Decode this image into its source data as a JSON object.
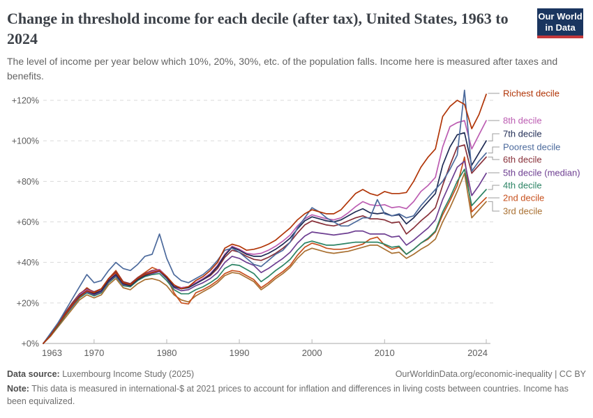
{
  "header": {
    "title": "Change in threshold income for each decile (after tax), United States, 1963 to 2024",
    "subtitle": "The level of income per year below which 10%, 20%, 30%, etc. of the population falls. Income here is measured after taxes and benefits.",
    "logo": {
      "line1": "Our World",
      "line2": "in Data",
      "bg": "#1A355F",
      "accent": "#C4383B"
    }
  },
  "chart_data": {
    "type": "line",
    "title": "Change in threshold income for each decile (after tax), United States, 1963 to 2024",
    "legend_position": "right",
    "grid": "horizontal-dashed",
    "ylim": [
      0,
      130
    ],
    "y_axis": {
      "ticks": [
        0,
        20,
        40,
        60,
        80,
        100,
        120
      ],
      "tick_labels": [
        "+0%",
        "+20%",
        "+40%",
        "+60%",
        "+80%",
        "+100%",
        "+120%"
      ]
    },
    "x_axis": {
      "ticks": [
        1963,
        1970,
        1980,
        1990,
        2000,
        2010,
        2024
      ],
      "tick_labels": [
        "1963",
        "1970",
        "1980",
        "1990",
        "2000",
        "2010",
        "2024"
      ]
    },
    "years": [
      1963,
      1964,
      1965,
      1966,
      1967,
      1968,
      1969,
      1970,
      1971,
      1972,
      1973,
      1974,
      1975,
      1976,
      1977,
      1978,
      1979,
      1980,
      1981,
      1982,
      1983,
      1984,
      1985,
      1986,
      1987,
      1988,
      1989,
      1990,
      1991,
      1992,
      1993,
      1994,
      1995,
      1996,
      1997,
      1998,
      1999,
      2000,
      2001,
      2002,
      2003,
      2004,
      2005,
      2006,
      2007,
      2008,
      2009,
      2010,
      2011,
      2012,
      2013,
      2014,
      2015,
      2016,
      2017,
      2018,
      2019,
      2020,
      2021,
      2022,
      2023,
      2024
    ],
    "draw_order": [
      8,
      7,
      6,
      5,
      4,
      1,
      2,
      3,
      0
    ],
    "series": [
      {
        "name": "Richest decile",
        "color": "#B13507",
        "values": [
          0,
          4,
          9,
          14,
          19,
          23,
          26,
          25,
          27,
          32,
          35,
          30,
          29,
          32,
          34,
          35,
          36,
          33,
          29,
          27,
          28,
          31,
          33,
          36,
          40,
          47,
          49,
          48,
          46,
          46.5,
          47.5,
          49,
          51,
          54,
          57,
          61,
          64,
          66,
          65,
          64,
          64,
          66,
          70,
          74,
          76,
          74,
          73,
          75,
          74,
          74,
          74.5,
          80,
          87,
          92,
          96,
          112,
          117,
          120,
          118,
          106,
          113,
          123
        ]
      },
      {
        "name": "8th decile",
        "color": "#BC5DB2",
        "values": [
          0,
          4.5,
          9,
          14,
          19,
          24,
          26.5,
          25,
          26.5,
          31.5,
          34.5,
          30,
          29,
          32,
          34,
          35.5,
          36.5,
          33,
          28.5,
          27.5,
          28,
          30,
          32,
          34.5,
          38.5,
          44,
          48,
          46.5,
          44.5,
          44,
          44.5,
          46,
          48,
          50.5,
          53.5,
          58,
          61.5,
          63.5,
          62.5,
          61.5,
          61,
          62,
          64.5,
          67.5,
          70,
          68.5,
          68,
          68.5,
          67,
          67.5,
          66.5,
          70,
          75,
          78,
          82,
          97,
          107,
          109,
          110,
          96,
          103,
          110
        ]
      },
      {
        "name": "7th decile",
        "color": "#1F2B54",
        "values": [
          0,
          4.5,
          9,
          14,
          19,
          23.5,
          26,
          24.5,
          26,
          31,
          34,
          29.5,
          28.5,
          31.5,
          33.5,
          35,
          36,
          32.5,
          28,
          27,
          27.5,
          29.5,
          31.5,
          34,
          38,
          43.5,
          47.5,
          46,
          44,
          43,
          43,
          44.5,
          46.5,
          49,
          52,
          56.5,
          60.5,
          62.5,
          61.5,
          60.5,
          60,
          61,
          63,
          65,
          66.5,
          64.5,
          64,
          64.5,
          63,
          63.5,
          59,
          62,
          66,
          70,
          74,
          88,
          97,
          103,
          104,
          88,
          94,
          100
        ]
      },
      {
        "name": "Poorest decile",
        "color": "#4C6A9C",
        "values": [
          0,
          5,
          10,
          16,
          22,
          28,
          34,
          30,
          31,
          36,
          40,
          37,
          36,
          39,
          43,
          44,
          54,
          42,
          34,
          31,
          30,
          32,
          34,
          37,
          41,
          46,
          47,
          45,
          42,
          39,
          38,
          41,
          44,
          46,
          50,
          57,
          62,
          67,
          65,
          62,
          60,
          58,
          58,
          60,
          62,
          62,
          71,
          64,
          63,
          64,
          62,
          63,
          68,
          72,
          76,
          80,
          86,
          93,
          125,
          85,
          90,
          94
        ]
      },
      {
        "name": "6th decile",
        "color": "#883039",
        "values": [
          0,
          4.5,
          9.5,
          15,
          20,
          24.5,
          27,
          25.5,
          27,
          32,
          35.5,
          30.5,
          29.5,
          32.5,
          34.5,
          36,
          36.5,
          33,
          28.5,
          27.5,
          28,
          30,
          31.5,
          33.5,
          37,
          42.5,
          46,
          45,
          43,
          41.5,
          41,
          42.5,
          44.5,
          47,
          50,
          54.5,
          58.5,
          60.5,
          59.5,
          58.5,
          58,
          59,
          60.5,
          62,
          63,
          61.5,
          61.5,
          61,
          59.5,
          60,
          54,
          57,
          60.5,
          63.5,
          67,
          78,
          88,
          97,
          98,
          84,
          88,
          92
        ]
      },
      {
        "name": "5th decile (median)",
        "color": "#6D3E91",
        "values": [
          0,
          4,
          9,
          14,
          18.5,
          23,
          25.5,
          24,
          25.5,
          30.5,
          33.5,
          29,
          28.5,
          31.5,
          33.5,
          34.5,
          35.5,
          32,
          27.5,
          26,
          26.5,
          28.5,
          30,
          32,
          35,
          40,
          43,
          42,
          40,
          38.5,
          35,
          37,
          39.5,
          42,
          45,
          49.5,
          53,
          55,
          54.5,
          54,
          53.5,
          54,
          54.5,
          55.5,
          55.5,
          54,
          54,
          54,
          52.5,
          53,
          48.5,
          51,
          54,
          57,
          61,
          71,
          79,
          87,
          90,
          73,
          78,
          84
        ]
      },
      {
        "name": "4th decile",
        "color": "#2C8465",
        "values": [
          0,
          4,
          8.5,
          13.5,
          18,
          22.5,
          25,
          23.5,
          25,
          30,
          33,
          28.5,
          28,
          31,
          33,
          34,
          34.5,
          31,
          26.5,
          24.5,
          24.5,
          26.5,
          28,
          30,
          32.5,
          37,
          39,
          38.5,
          36.5,
          34.5,
          30.5,
          33,
          36,
          38.5,
          41.5,
          46,
          49.5,
          50.5,
          49.5,
          48.5,
          48.5,
          49,
          49.5,
          50,
          50,
          50,
          50,
          49,
          47.5,
          48,
          44,
          46.5,
          49.5,
          52,
          55.5,
          65,
          72,
          80,
          86,
          68,
          72,
          76
        ]
      },
      {
        "name": "2nd decile",
        "color": "#C7501D",
        "values": [
          0,
          4,
          9,
          14.5,
          19.5,
          24,
          27.5,
          25,
          26.5,
          32,
          36,
          30.5,
          29,
          32.5,
          35,
          37.5,
          36,
          32.5,
          25,
          20,
          19.5,
          25,
          26.5,
          28.5,
          31,
          34.5,
          36,
          35.5,
          33.5,
          31.5,
          27.5,
          30,
          33,
          35.5,
          38.5,
          43.5,
          47.5,
          49.5,
          48.5,
          47,
          46.5,
          46.5,
          47,
          48,
          49,
          51.5,
          52.5,
          48.5,
          46.5,
          47.5,
          44,
          46.5,
          49.5,
          51.5,
          55,
          63.5,
          70.5,
          78,
          92,
          65,
          68.5,
          72
        ]
      },
      {
        "name": "3rd decile",
        "color": "#A97031",
        "values": [
          0,
          3.5,
          8,
          12.5,
          17,
          21.5,
          24,
          22.5,
          24,
          29,
          32,
          27.5,
          26.5,
          29.5,
          31.5,
          32,
          31,
          28.5,
          24,
          21.5,
          20.5,
          23.5,
          25.5,
          27.5,
          30,
          33.5,
          35,
          34.5,
          32.5,
          30.5,
          26.5,
          29,
          32,
          34.5,
          37.5,
          42,
          45.5,
          47,
          46,
          45,
          44.5,
          45,
          45.5,
          46.5,
          47.5,
          48.5,
          48.5,
          46.5,
          44.5,
          45,
          42,
          44,
          46.5,
          48.5,
          51.5,
          60,
          67,
          75,
          84,
          62,
          66,
          70
        ]
      }
    ]
  },
  "footer": {
    "data_source_label": "Data source:",
    "data_source": "Luxembourg Income Study (2025)",
    "attribution_url": "OurWorldinData.org/economic-inequality",
    "separator": "|",
    "license": "CC BY",
    "note_label": "Note:",
    "note": "This data is measured in international-$ at 2021 prices to account for inflation and differences in living costs between countries. Income has been equivalized."
  }
}
